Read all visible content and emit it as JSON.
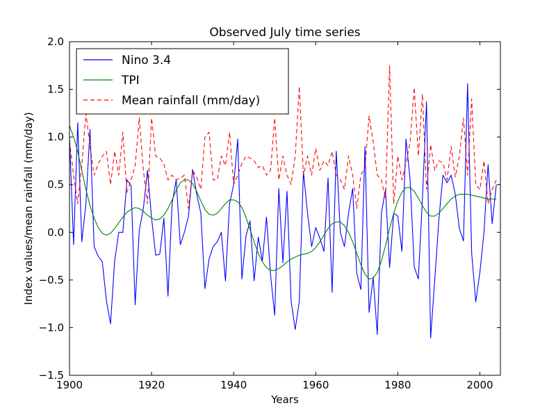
{
  "chart_data": {
    "type": "line",
    "title": "Observed July time series",
    "xlabel": "Years",
    "ylabel": "Index values/mean rainfall (mm/day)",
    "xlim": [
      1900,
      2005
    ],
    "ylim": [
      -1.5,
      2.0
    ],
    "x_ticks": [
      1900,
      1920,
      1940,
      1960,
      1980,
      2000
    ],
    "y_ticks": [
      -1.5,
      -1.0,
      -0.5,
      0.0,
      0.5,
      1.0,
      1.5,
      2.0
    ],
    "x_tick_labels": [
      "1900",
      "1920",
      "1940",
      "1960",
      "1980",
      "2000"
    ],
    "y_tick_labels": [
      "−1.5",
      "−1.0",
      "−0.5",
      "0.0",
      "0.5",
      "1.0",
      "1.5",
      "2.0"
    ],
    "grid": false,
    "legend_position": "top-left",
    "x": [
      1900,
      1901,
      1902,
      1903,
      1904,
      1905,
      1906,
      1907,
      1908,
      1909,
      1910,
      1911,
      1912,
      1913,
      1914,
      1915,
      1916,
      1917,
      1918,
      1919,
      1920,
      1921,
      1922,
      1923,
      1924,
      1925,
      1926,
      1927,
      1928,
      1929,
      1930,
      1931,
      1932,
      1933,
      1934,
      1935,
      1936,
      1937,
      1938,
      1939,
      1940,
      1941,
      1942,
      1943,
      1944,
      1945,
      1946,
      1947,
      1948,
      1949,
      1950,
      1951,
      1952,
      1953,
      1954,
      1955,
      1956,
      1957,
      1958,
      1959,
      1960,
      1961,
      1962,
      1963,
      1964,
      1965,
      1966,
      1967,
      1968,
      1969,
      1970,
      1971,
      1972,
      1973,
      1974,
      1975,
      1976,
      1977,
      1978,
      1979,
      1980,
      1981,
      1982,
      1983,
      1984,
      1985,
      1986,
      1987,
      1988,
      1989,
      1990,
      1991,
      1992,
      1993,
      1994,
      1995,
      1996,
      1997,
      1998,
      1999,
      2000,
      2001,
      2002,
      2003,
      2004
    ],
    "series": [
      {
        "name": "Nino 3.4",
        "color": "#0000ff",
        "style": "solid",
        "values": [
          1.0,
          -0.13,
          1.15,
          -0.1,
          0.3,
          1.08,
          -0.15,
          -0.25,
          -0.31,
          -0.72,
          -0.96,
          -0.3,
          0.0,
          0.0,
          0.55,
          0.49,
          -0.76,
          0.02,
          0.25,
          0.65,
          0.15,
          -0.24,
          -0.23,
          0.15,
          -0.67,
          0.3,
          0.55,
          -0.13,
          0.0,
          0.17,
          0.66,
          0.4,
          0.2,
          -0.59,
          -0.28,
          -0.15,
          -0.1,
          0.0,
          -0.51,
          0.3,
          0.5,
          0.98,
          -0.49,
          -0.04,
          0.12,
          -0.51,
          -0.05,
          -0.3,
          0.16,
          -0.45,
          -0.87,
          0.46,
          -0.32,
          0.43,
          -0.72,
          -1.02,
          -0.72,
          0.64,
          0.2,
          -0.15,
          0.05,
          -0.06,
          -0.2,
          0.57,
          -0.63,
          0.85,
          0.0,
          -0.15,
          0.2,
          0.46,
          -0.43,
          -0.6,
          0.9,
          -0.84,
          -0.47,
          -1.07,
          0.2,
          0.45,
          -0.37,
          0.2,
          0.17,
          -0.2,
          0.98,
          0.55,
          -0.36,
          -0.49,
          0.35,
          1.37,
          -1.11,
          -0.5,
          0.13,
          0.6,
          0.52,
          0.6,
          0.4,
          0.04,
          -0.09,
          1.56,
          -0.22,
          -0.73,
          -0.42,
          0.0,
          0.71,
          0.09,
          0.5
        ]
      },
      {
        "name": "TPI",
        "color": "#008000",
        "style": "solid",
        "values": [
          1.12,
          1.0,
          0.85,
          0.65,
          0.45,
          0.28,
          0.15,
          0.05,
          -0.01,
          -0.03,
          -0.01,
          0.04,
          0.1,
          0.16,
          0.21,
          0.24,
          0.26,
          0.25,
          0.22,
          0.18,
          0.15,
          0.13,
          0.14,
          0.18,
          0.25,
          0.34,
          0.44,
          0.52,
          0.55,
          0.55,
          0.51,
          0.43,
          0.33,
          0.24,
          0.19,
          0.18,
          0.2,
          0.25,
          0.3,
          0.34,
          0.34,
          0.32,
          0.26,
          0.16,
          0.03,
          -0.1,
          -0.22,
          -0.31,
          -0.37,
          -0.4,
          -0.4,
          -0.38,
          -0.35,
          -0.31,
          -0.28,
          -0.26,
          -0.24,
          -0.23,
          -0.22,
          -0.2,
          -0.16,
          -0.1,
          -0.03,
          0.04,
          0.09,
          0.11,
          0.11,
          0.07,
          0.0,
          -0.1,
          -0.22,
          -0.34,
          -0.44,
          -0.49,
          -0.48,
          -0.42,
          -0.3,
          -0.14,
          0.04,
          0.2,
          0.33,
          0.42,
          0.47,
          0.47,
          0.43,
          0.36,
          0.28,
          0.21,
          0.17,
          0.17,
          0.2,
          0.25,
          0.3,
          0.35,
          0.38,
          0.4,
          0.4,
          0.4,
          0.39,
          0.38,
          0.37,
          0.36,
          0.35,
          0.35,
          0.35
        ]
      },
      {
        "name": "Mean rainfall (mm/day)",
        "color": "#ff0000",
        "style": "dashed",
        "values": [
          0.96,
          0.6,
          0.3,
          0.7,
          1.25,
          0.9,
          0.6,
          0.72,
          0.8,
          0.85,
          0.5,
          0.85,
          0.6,
          1.05,
          0.42,
          0.55,
          0.7,
          1.2,
          0.65,
          0.3,
          1.2,
          0.8,
          0.78,
          0.72,
          0.55,
          0.6,
          0.55,
          0.57,
          0.6,
          0.25,
          0.65,
          0.58,
          0.45,
          1.0,
          1.05,
          0.55,
          0.55,
          0.8,
          0.7,
          1.05,
          0.5,
          0.6,
          0.72,
          0.8,
          0.78,
          0.75,
          0.68,
          0.7,
          0.6,
          0.65,
          1.2,
          0.55,
          0.8,
          0.6,
          0.5,
          0.8,
          1.53,
          0.6,
          0.8,
          0.6,
          0.88,
          0.65,
          0.75,
          0.7,
          0.85,
          0.6,
          0.55,
          0.45,
          0.8,
          0.6,
          0.25,
          0.6,
          0.68,
          1.22,
          0.95,
          0.6,
          0.55,
          0.35,
          1.75,
          0.3,
          0.8,
          0.55,
          0.72,
          0.95,
          1.52,
          0.8,
          1.45,
          0.45,
          0.92,
          0.65,
          0.75,
          0.73,
          0.55,
          0.9,
          0.58,
          0.8,
          1.2,
          0.6,
          1.4,
          0.5,
          0.45,
          0.75,
          0.3,
          0.45,
          0.55
        ]
      }
    ]
  }
}
